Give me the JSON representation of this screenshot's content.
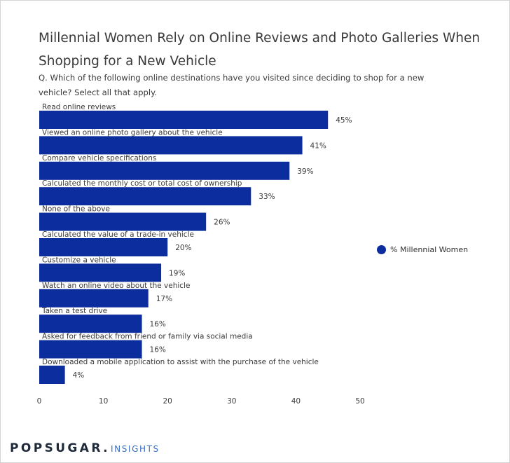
{
  "header": {
    "title": "Millennial Women Rely on Online Reviews and Photo Galleries When Shopping for a New Vehicle",
    "subtitle": "Q. Which of the following online destinations have you visited since deciding to shop for a new vehicle? Select all that apply."
  },
  "legend": {
    "label": "% Millennial Women",
    "color": "#0c2d9e"
  },
  "brand": {
    "main": "POPSUGAR.",
    "sub": "INSIGHTS"
  },
  "chart_data": {
    "type": "bar",
    "orientation": "horizontal",
    "title": "Millennial Women Rely on Online Reviews and Photo Galleries When Shopping for a New Vehicle",
    "subtitle": "Q. Which of the following online destinations have you visited since deciding to shop for a new vehicle? Select all that apply.",
    "categories": [
      "Read online reviews",
      "Viewed an online photo gallery about the vehicle",
      "Compare vehicle specifications",
      "Calculated the monthly cost or total cost of ownership",
      "None of the above",
      "Calculated the value of a trade-in vehicle",
      "Customize a vehicle",
      "Watch an online video about the vehicle",
      "Taken a test drive",
      "Asked for feedback from friend or family via social media",
      "Downloaded a mobile application to assist with the purchase of the vehicle"
    ],
    "series": [
      {
        "name": "% Millennial Women",
        "values": [
          45,
          41,
          39,
          33,
          26,
          20,
          19,
          17,
          16,
          16,
          4
        ],
        "labels": [
          "45%",
          "41%",
          "39%",
          "33%",
          "26%",
          "20%",
          "19%",
          "17%",
          "16%",
          "16%",
          "4%"
        ],
        "color": "#0c2d9e"
      }
    ],
    "xlim": [
      0,
      50
    ],
    "xticks": [
      0,
      10,
      20,
      30,
      40,
      50
    ],
    "grid": false,
    "legend_position": "right"
  }
}
